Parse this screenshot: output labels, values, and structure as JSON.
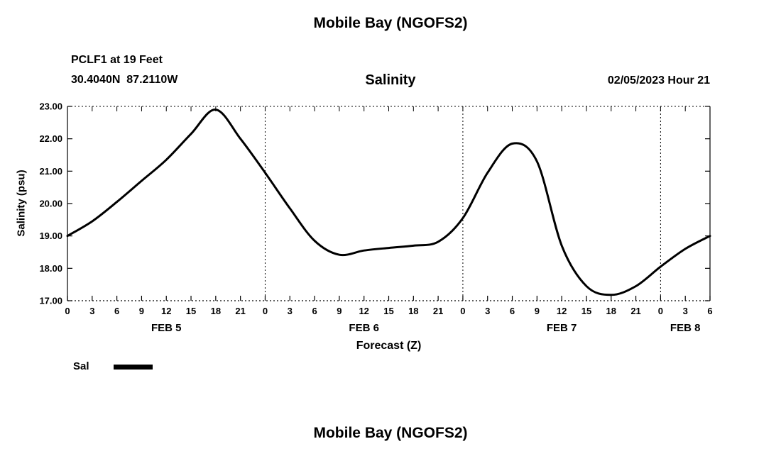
{
  "chart_data": {
    "type": "line",
    "page_title": "Mobile Bay (NGOFS2)",
    "page_title_bottom": "Mobile Bay (NGOFS2)",
    "station": "PCLF1 at 19 Feet",
    "coordinates": "30.4040N  87.2110W",
    "title": "Salinity",
    "issued": "02/05/2023 Hour 21",
    "xlabel": "Forecast (Z)",
    "ylabel": "Salinity (psu)",
    "ylim": [
      17.0,
      23.0
    ],
    "ytick_values": [
      17,
      18,
      19,
      20,
      21,
      22,
      23
    ],
    "ytick_labels": [
      "17.00",
      "18.00",
      "19.00",
      "20.00",
      "21.00",
      "22.00",
      "23.00"
    ],
    "x_total_hours": 78,
    "xtick_step_hours": 3,
    "xtick_hours": [
      0,
      3,
      6,
      9,
      12,
      15,
      18,
      21,
      24,
      27,
      30,
      33,
      36,
      39,
      42,
      45,
      48,
      51,
      54,
      57,
      60,
      63,
      66,
      69,
      72,
      75,
      78
    ],
    "xtick_labels": [
      "0",
      "3",
      "6",
      "9",
      "12",
      "15",
      "18",
      "21",
      "0",
      "3",
      "6",
      "9",
      "12",
      "15",
      "18",
      "21",
      "0",
      "3",
      "6",
      "9",
      "12",
      "15",
      "18",
      "21",
      "0",
      "3",
      "6"
    ],
    "day_labels": [
      {
        "label": "FEB 5",
        "center_hour": 12
      },
      {
        "label": "FEB 6",
        "center_hour": 36
      },
      {
        "label": "FEB 7",
        "center_hour": 60
      },
      {
        "label": "FEB 8",
        "center_hour": 75
      }
    ],
    "day_boundary_hours": [
      24,
      48,
      72
    ],
    "grid": "dotted vertical lines at day boundaries; dashed top and bottom frame with tick crosses",
    "legend_position": "bottom-left",
    "line_color": "#000000",
    "line_width": 3,
    "legend": [
      {
        "name": "Sal",
        "color": "#000000"
      }
    ],
    "series": [
      {
        "name": "Sal",
        "x_hours": [
          0,
          3,
          6,
          9,
          12,
          15,
          18,
          21,
          24,
          27,
          30,
          33,
          36,
          39,
          42,
          45,
          48,
          51,
          54,
          57,
          60,
          63,
          66,
          69,
          72,
          75,
          78
        ],
        "values": [
          19.0,
          19.45,
          20.05,
          20.7,
          21.35,
          22.15,
          22.9,
          22.0,
          20.95,
          19.85,
          18.85,
          18.42,
          18.55,
          18.63,
          18.7,
          18.82,
          19.55,
          20.95,
          21.85,
          21.3,
          18.7,
          17.45,
          17.18,
          17.45,
          18.05,
          18.6,
          19.0
        ]
      }
    ]
  }
}
